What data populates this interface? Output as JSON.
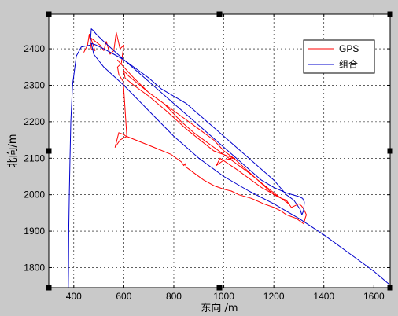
{
  "chart_data": {
    "type": "line",
    "title": "",
    "xlabel": "东向 /m",
    "ylabel": "北向/m",
    "xlim": [
      300,
      1665
    ],
    "ylim": [
      1745,
      2495
    ],
    "xticks": [
      400,
      600,
      800,
      1000,
      1200,
      1400,
      1600
    ],
    "yticks": [
      1800,
      1900,
      2000,
      2100,
      2200,
      2300,
      2400
    ],
    "grid": true,
    "legend_position": "top-right",
    "series": [
      {
        "name": "GPS",
        "color": "#ff0000",
        "x": [
          440,
          455,
          462,
          470,
          485,
          468,
          505,
          520,
          530,
          545,
          560,
          570,
          585,
          600,
          590,
          575,
          580,
          598,
          612,
          585,
          565,
          580,
          600,
          605,
          610,
          720,
          790,
          830,
          840,
          845,
          850,
          860,
          880,
          920,
          960,
          980,
          1000,
          1030,
          1060,
          1110,
          1160,
          1200,
          1230,
          1250,
          1270,
          1290,
          1300,
          1310,
          1320,
          1325,
          1330,
          1320,
          1310,
          1300,
          1270,
          1250,
          1230,
          1150,
          1050,
          985,
          970,
          1000,
          1040,
          960,
          850,
          770,
          700,
          640,
          605,
          600,
          620,
          700,
          800,
          860,
          900,
          960,
          1000,
          1040,
          1120,
          1200,
          1230,
          1250,
          1260,
          1200,
          1100,
          1000,
          880,
          830,
          760,
          700,
          640,
          600,
          580,
          575
        ],
        "y": [
          2390,
          2410,
          2440,
          2400,
          2395,
          2430,
          2410,
          2395,
          2420,
          2385,
          2395,
          2445,
          2400,
          2410,
          2360,
          2350,
          2330,
          2310,
          2160,
          2150,
          2130,
          2170,
          2165,
          2162,
          2160,
          2130,
          2110,
          2090,
          2080,
          2085,
          2075,
          2070,
          2060,
          2040,
          2025,
          2020,
          2015,
          2010,
          2000,
          1990,
          1975,
          1965,
          1955,
          1945,
          1940,
          1935,
          1930,
          1925,
          1920,
          1935,
          1945,
          1960,
          1970,
          1975,
          1965,
          1985,
          1990,
          2020,
          2070,
          2100,
          2080,
          2095,
          2100,
          2120,
          2180,
          2230,
          2270,
          2300,
          2320,
          2340,
          2325,
          2280,
          2230,
          2200,
          2180,
          2150,
          2120,
          2100,
          2050,
          2000,
          1990,
          1980,
          1975,
          2005,
          2060,
          2110,
          2170,
          2200,
          2250,
          2280,
          2320,
          2350,
          2365,
          2370
        ]
      },
      {
        "name": "组合",
        "color": "#0000cc",
        "x": [
          378,
          379,
          380,
          382,
          385,
          388,
          395,
          410,
          430,
          450,
          465,
          470,
          478,
          490,
          520,
          560,
          600,
          650,
          700,
          750,
          800,
          850,
          900,
          950,
          1000,
          1050,
          1100,
          1150,
          1200,
          1250,
          1300,
          1315,
          1322,
          1320,
          1318,
          1312,
          1305,
          1300,
          1280,
          1250,
          1200,
          1150,
          1100,
          1050,
          1000,
          950,
          900,
          850,
          800,
          750,
          700,
          650,
          600,
          560,
          520,
          490,
          470,
          480,
          520,
          600,
          700,
          800,
          900,
          1000,
          1100,
          1200,
          1300,
          1400,
          1500,
          1600,
          1660
        ],
        "y": [
          1745,
          1800,
          1900,
          2000,
          2100,
          2200,
          2300,
          2380,
          2405,
          2408,
          2410,
          2455,
          2450,
          2440,
          2420,
          2395,
          2370,
          2340,
          2310,
          2280,
          2250,
          2220,
          2190,
          2160,
          2130,
          2100,
          2070,
          2040,
          2020,
          2005,
          1995,
          1990,
          1980,
          1965,
          1955,
          1945,
          1960,
          1965,
          1985,
          2000,
          2040,
          2070,
          2100,
          2130,
          2160,
          2190,
          2220,
          2250,
          2270,
          2290,
          2320,
          2345,
          2370,
          2385,
          2400,
          2410,
          2415,
          2385,
          2350,
          2300,
          2230,
          2160,
          2100,
          2050,
          2010,
          1975,
          1935,
          1890,
          1840,
          1790,
          1755
        ]
      }
    ]
  }
}
